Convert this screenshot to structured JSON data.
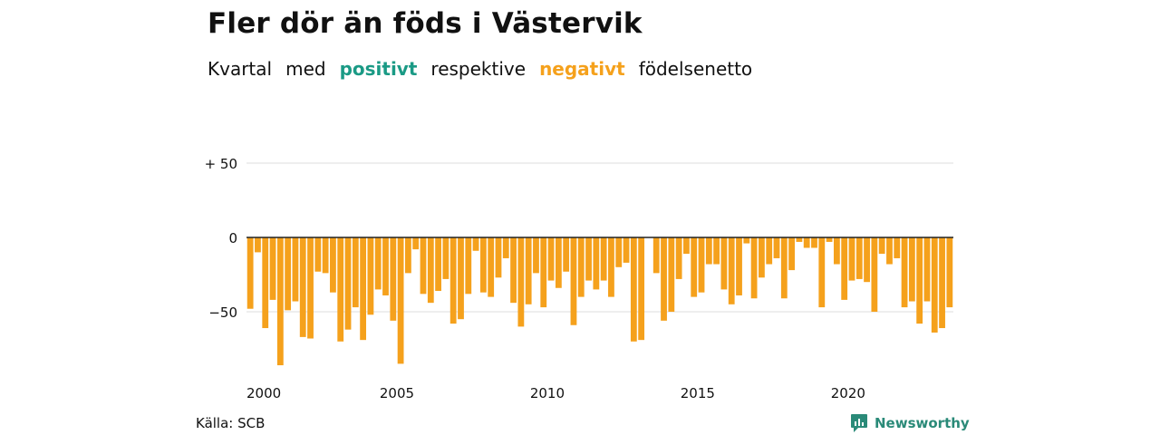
{
  "title": "Fler dör än föds i Västervik",
  "subtitle": {
    "word1": "Kvartal",
    "word2": "med",
    "positive": "positivt",
    "word3": "respektive",
    "negative": "negativt",
    "word4": "födelsenetto"
  },
  "source": "Källa: SCB",
  "brand": "Newsworthy",
  "colors": {
    "positive": "#1a9a85",
    "negative": "#f5a11c",
    "grid": "#dcdcdc",
    "zero_line": "#222222",
    "brand": "#2a8a78"
  },
  "chart_data": {
    "type": "bar",
    "title": "Fler dör än föds i Västervik",
    "xlabel": "",
    "ylabel": "",
    "ylim": [
      -90,
      60
    ],
    "y_ticks": [
      {
        "value": 50,
        "label": "+ 50"
      },
      {
        "value": 0,
        "label": "0"
      },
      {
        "value": -50,
        "label": "−50"
      }
    ],
    "x_ticks": [
      "2000",
      "2005",
      "2010",
      "2015",
      "2020"
    ],
    "grid": true,
    "start_year": 2000,
    "periods_per_year": 4,
    "values": [
      -48,
      -10,
      -61,
      -42,
      -86,
      -49,
      -43,
      -67,
      -68,
      -23,
      -24,
      -37,
      -70,
      -62,
      -47,
      -69,
      -52,
      -35,
      -39,
      -56,
      -85,
      -24,
      -8,
      -38,
      -44,
      -36,
      -28,
      -58,
      -55,
      -38,
      -9,
      -37,
      -40,
      -27,
      -14,
      -44,
      -60,
      -45,
      -24,
      -47,
      -29,
      -34,
      -23,
      -59,
      -40,
      -29,
      -35,
      -29,
      -40,
      -20,
      -17,
      -70,
      -69,
      0,
      -24,
      -56,
      -50,
      -28,
      -11,
      -40,
      -37,
      -18,
      -18,
      -35,
      -45,
      -39,
      -4,
      -41,
      -27,
      -18,
      -14,
      -41,
      -22,
      -3,
      -7,
      -7,
      -47,
      -3,
      -18,
      -42,
      -29,
      -28,
      -30,
      -50,
      -11,
      -18,
      -14,
      -47,
      -43,
      -58,
      -43,
      -64,
      -61,
      -47
    ]
  }
}
